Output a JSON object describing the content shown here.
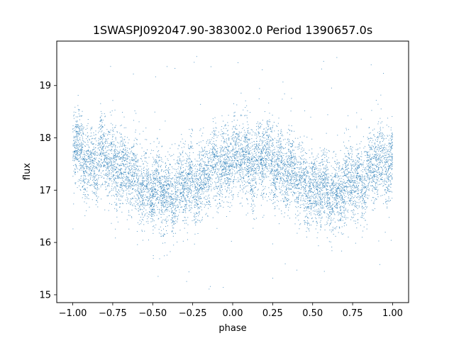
{
  "chart_data": {
    "type": "scatter",
    "title": "1SWASPJ092047.90-383002.0 Period 1390657.0s",
    "xlabel": "phase",
    "ylabel": "flux",
    "xlim": [
      -1.1,
      1.1
    ],
    "ylim": [
      14.85,
      19.85
    ],
    "grid": false,
    "x_ticks": [
      -1.0,
      -0.75,
      -0.5,
      -0.25,
      0.0,
      0.25,
      0.5,
      0.75,
      1.0
    ],
    "x_tick_labels": [
      "−1.00",
      "−0.75",
      "−0.50",
      "−0.25",
      "0.00",
      "0.25",
      "0.50",
      "0.75",
      "1.00"
    ],
    "y_ticks": [
      15,
      16,
      17,
      18,
      19
    ],
    "y_tick_labels": [
      "15",
      "16",
      "17",
      "18",
      "19"
    ],
    "series": [
      {
        "color": "#1f77b4",
        "marker": "point",
        "description_of_shape": "phase-folded light curve, mirrored at phase 0",
        "envelope": [
          {
            "phase": -0.97,
            "median": 17.75
          },
          {
            "phase": -0.9,
            "median": 17.55
          },
          {
            "phase": -0.8,
            "median": 17.6
          },
          {
            "phase": -0.7,
            "median": 17.45
          },
          {
            "phase": -0.6,
            "median": 17.2
          },
          {
            "phase": -0.5,
            "median": 17.0
          },
          {
            "phase": -0.4,
            "median": 16.95
          },
          {
            "phase": -0.3,
            "median": 17.05
          },
          {
            "phase": -0.2,
            "median": 17.25
          },
          {
            "phase": -0.1,
            "median": 17.45
          },
          {
            "phase": 0.0,
            "median": 17.6
          },
          {
            "phase": 0.1,
            "median": 17.55
          },
          {
            "phase": 0.2,
            "median": 17.6
          },
          {
            "phase": 0.3,
            "median": 17.45
          },
          {
            "phase": 0.4,
            "median": 17.2
          },
          {
            "phase": 0.5,
            "median": 17.0
          },
          {
            "phase": 0.6,
            "median": 16.95
          },
          {
            "phase": 0.7,
            "median": 17.05
          },
          {
            "phase": 0.8,
            "median": 17.25
          },
          {
            "phase": 0.9,
            "median": 17.45
          },
          {
            "phase": 1.0,
            "median": 17.6
          }
        ],
        "point_count_estimate": 9000
      }
    ]
  }
}
